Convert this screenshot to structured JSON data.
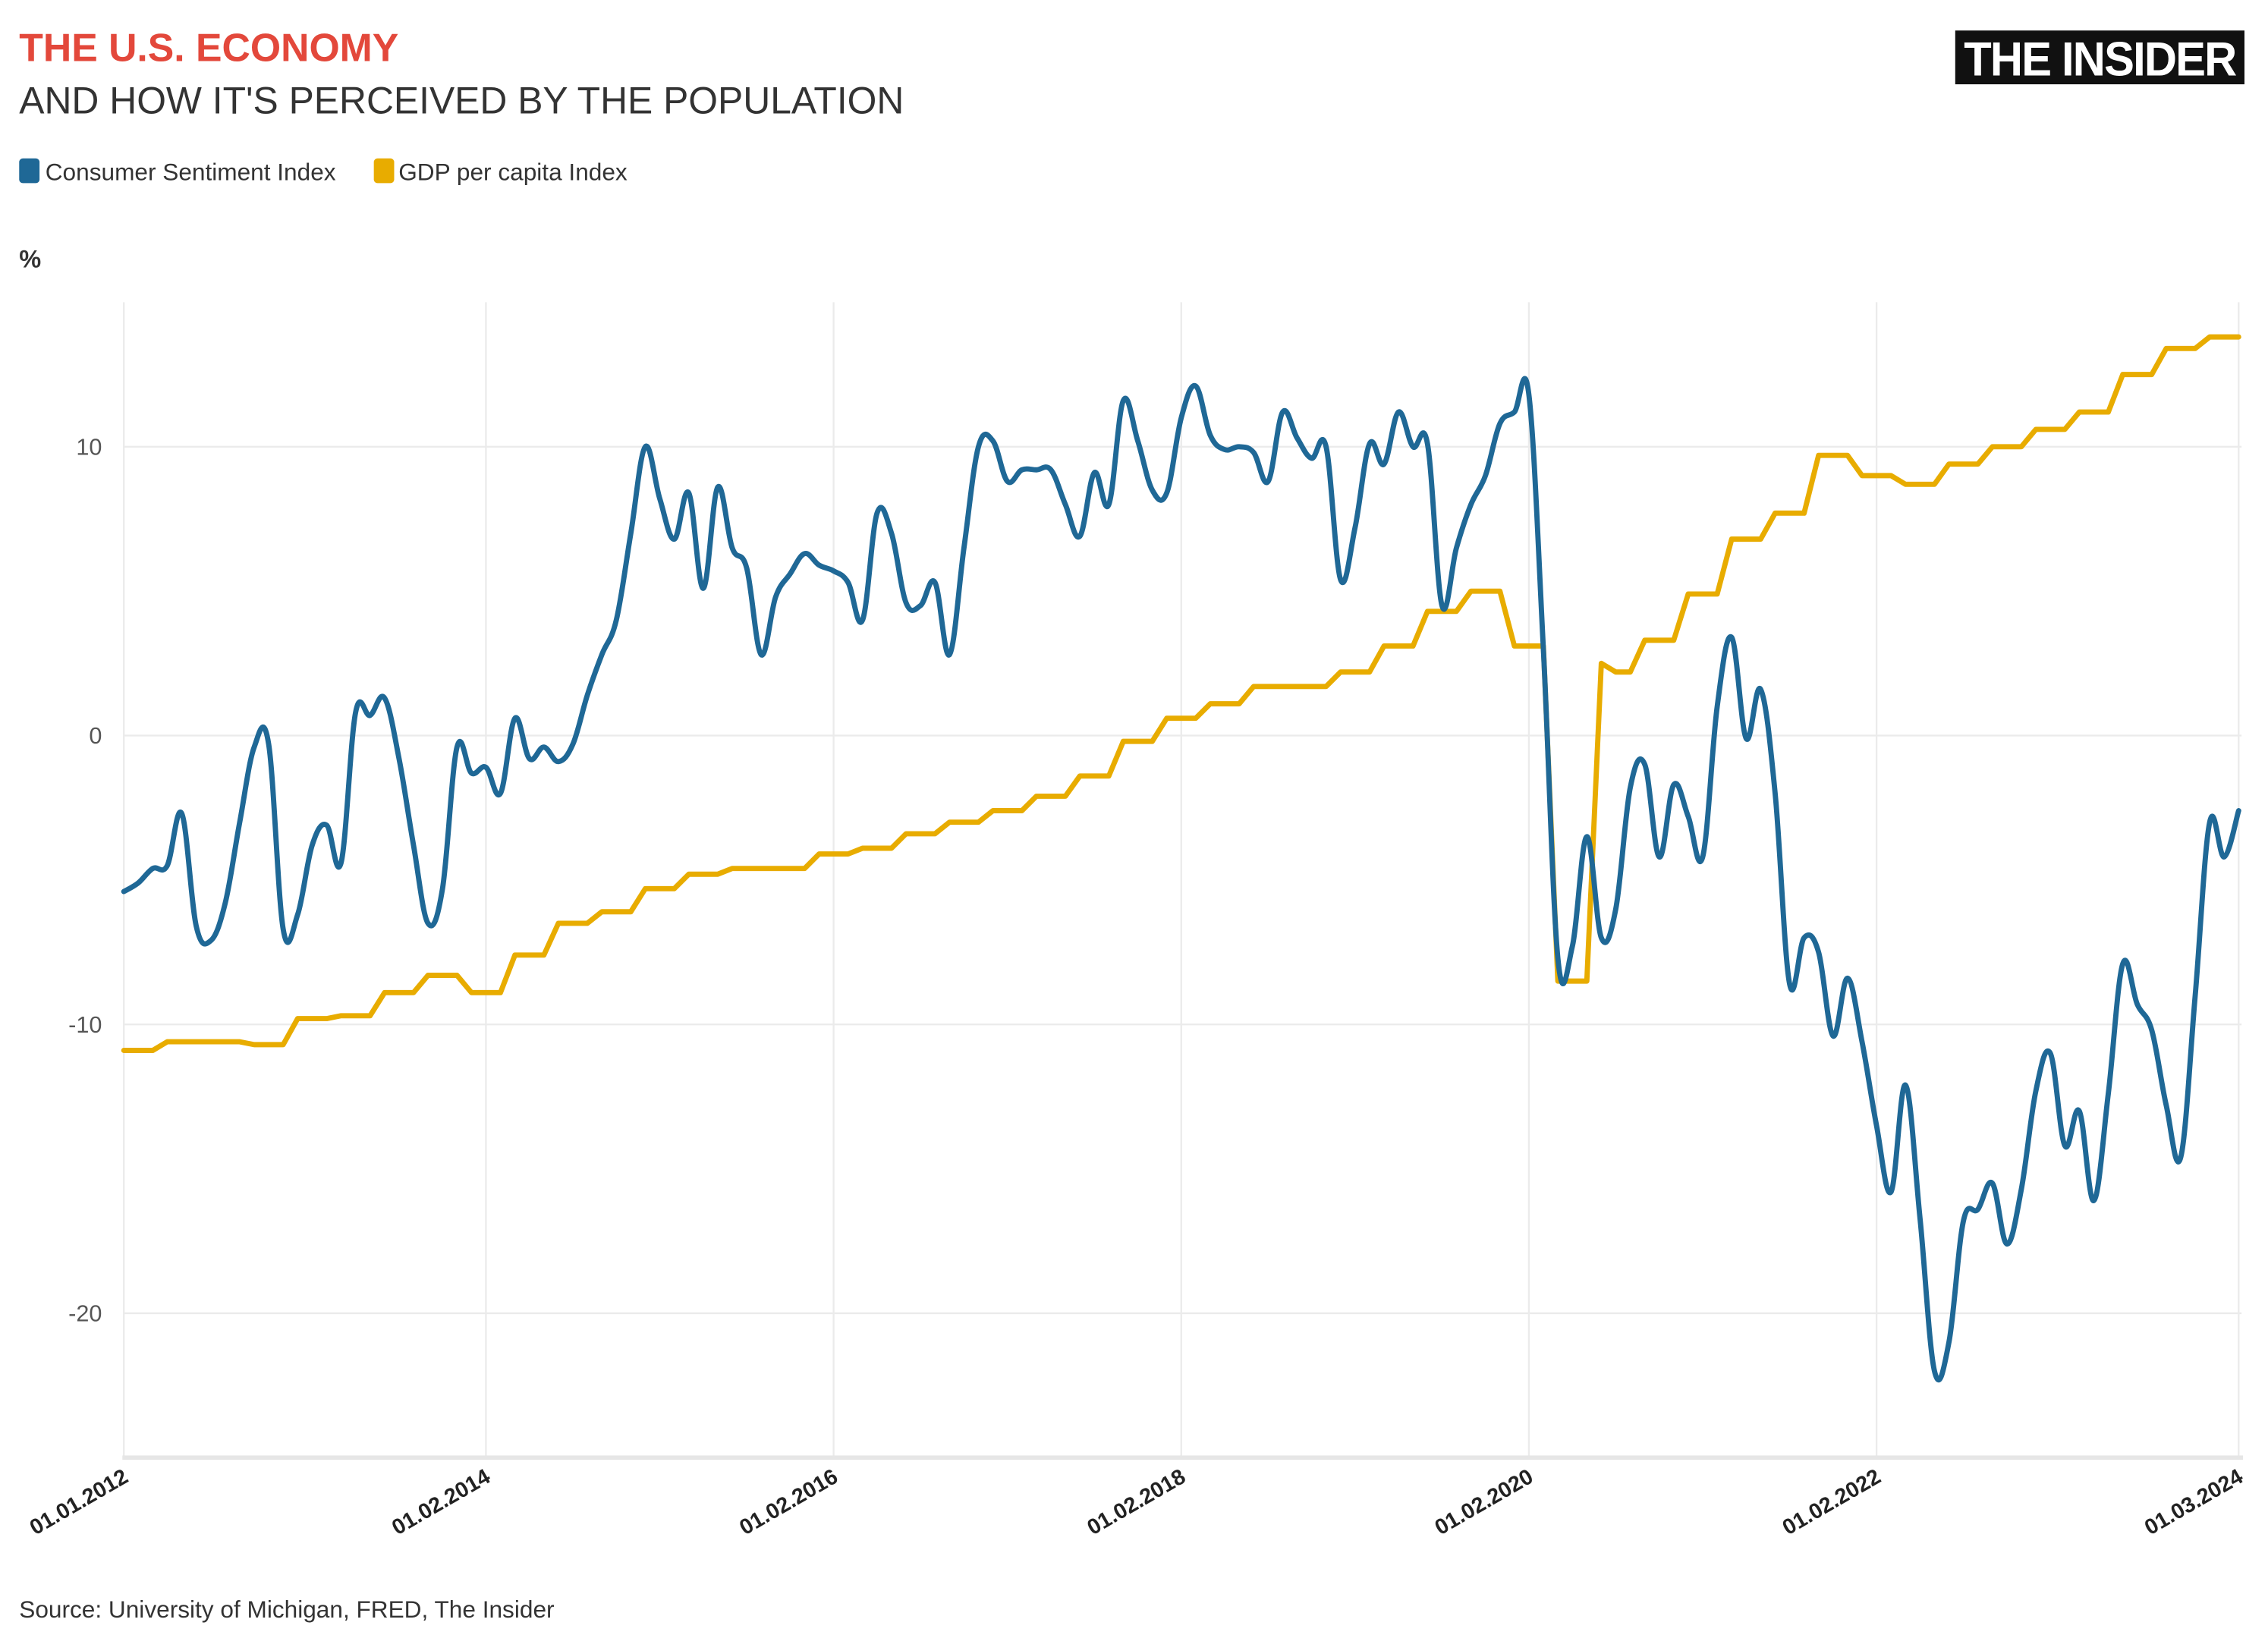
{
  "header": {
    "title": "THE U.S. ECONOMY",
    "subtitle": "AND HOW IT'S PERCEIVED BY THE POPULATION",
    "logo": "THE INSIDER"
  },
  "footer": {
    "source": "Source: University of Michigan, FRED, The Insider"
  },
  "colors": {
    "title": "#e3483b",
    "sentiment": "#1f6896",
    "gdp": "#e8ac00",
    "logo_bg": "#111111"
  },
  "chart_data": {
    "type": "line",
    "title": "THE U.S. ECONOMY",
    "subtitle": "AND HOW IT'S PERCEIVED BY THE POPULATION",
    "xlabel": "",
    "ylabel": "%",
    "x_start": "2012-01",
    "x_frequency": "monthly",
    "x_ticks": [
      "01.01.2012",
      "01.02.2014",
      "01.02.2016",
      "01.02.2018",
      "01.02.2020",
      "01.02.2022",
      "01.03.2024"
    ],
    "y_ticks": [
      10,
      0,
      -10,
      -20
    ],
    "ylim": [
      -25,
      15
    ],
    "grid": true,
    "legend_position": "top-left",
    "series": [
      {
        "name": "Consumer Sentiment Index",
        "color": "#1f6896",
        "values": [
          -5.4,
          -5.1,
          -4.6,
          -4.5,
          -2.7,
          -6.6,
          -7.1,
          -5.8,
          -3.0,
          -0.4,
          -0.3,
          -6.7,
          -6.2,
          -3.8,
          -3.1,
          -4.4,
          0.8,
          0.7,
          1.3,
          -0.8,
          -3.8,
          -6.5,
          -5.3,
          -0.4,
          -1.3,
          -1.1,
          -2.0,
          0.6,
          -0.8,
          -0.4,
          -0.9,
          -0.3,
          1.4,
          2.8,
          4.0,
          7.0,
          10.0,
          8.2,
          6.8,
          8.4,
          5.1,
          8.6,
          6.5,
          5.8,
          2.8,
          4.8,
          5.6,
          6.3,
          5.9,
          5.7,
          5.3,
          4.0,
          7.7,
          7.0,
          4.6,
          4.5,
          5.3,
          2.8,
          6.5,
          10.0,
          10.2,
          8.8,
          9.2,
          9.2,
          9.2,
          8.0,
          6.9,
          9.1,
          8.0,
          11.6,
          10.2,
          8.5,
          8.4,
          11.0,
          12.1,
          10.4,
          9.9,
          10.0,
          9.8,
          8.8,
          11.2,
          10.3,
          9.6,
          10.0,
          5.4,
          7.2,
          10.1,
          9.4,
          11.2,
          10.0,
          10.1,
          4.5,
          6.5,
          8.0,
          9.0,
          10.8,
          11.2,
          11.8,
          3.0,
          -7.7,
          -7.3,
          -3.5,
          -7.0,
          -6.0,
          -1.8,
          -1.0,
          -4.2,
          -1.7,
          -2.8,
          -4.2,
          1.0,
          3.4,
          -0.1,
          1.6,
          -2.0,
          -8.6,
          -7.0,
          -7.5,
          -10.4,
          -8.4,
          -10.6,
          -13.5,
          -15.8,
          -12.1,
          -16.7,
          -22.0,
          -21.0,
          -16.8,
          -16.4,
          -15.5,
          -17.6,
          -15.7,
          -12.3,
          -11.0,
          -14.2,
          -13.0,
          -16.1,
          -12.4,
          -7.9,
          -9.3,
          -10.2,
          -12.8,
          -14.6,
          -9.0,
          -3.0,
          -4.2,
          -2.6
        ]
      },
      {
        "name": "GDP per capita Index",
        "color": "#e8ac00",
        "values": [
          -10.9,
          -10.9,
          -10.9,
          -10.6,
          -10.6,
          -10.6,
          -10.6,
          -10.6,
          -10.6,
          -10.7,
          -10.7,
          -10.7,
          -9.8,
          -9.8,
          -9.8,
          -9.7,
          -9.7,
          -9.7,
          -8.9,
          -8.9,
          -8.9,
          -8.3,
          -8.3,
          -8.3,
          -8.9,
          -8.9,
          -8.9,
          -7.6,
          -7.6,
          -7.6,
          -6.5,
          -6.5,
          -6.5,
          -6.1,
          -6.1,
          -6.1,
          -5.3,
          -5.3,
          -5.3,
          -4.8,
          -4.8,
          -4.8,
          -4.6,
          -4.6,
          -4.6,
          -4.6,
          -4.6,
          -4.6,
          -4.1,
          -4.1,
          -4.1,
          -3.9,
          -3.9,
          -3.9,
          -3.4,
          -3.4,
          -3.4,
          -3.0,
          -3.0,
          -3.0,
          -2.6,
          -2.6,
          -2.6,
          -2.1,
          -2.1,
          -2.1,
          -1.4,
          -1.4,
          -1.4,
          -0.2,
          -0.2,
          -0.2,
          0.6,
          0.6,
          0.6,
          1.1,
          1.1,
          1.1,
          1.7,
          1.7,
          1.7,
          1.7,
          1.7,
          1.7,
          2.2,
          2.2,
          2.2,
          3.1,
          3.1,
          3.1,
          4.3,
          4.3,
          4.3,
          5.0,
          5.0,
          5.0,
          3.1,
          3.1,
          3.1,
          -8.5,
          -8.5,
          -8.5,
          2.5,
          2.2,
          2.2,
          3.3,
          3.3,
          3.3,
          4.9,
          4.9,
          4.9,
          6.8,
          6.8,
          6.8,
          7.7,
          7.7,
          7.7,
          9.7,
          9.7,
          9.7,
          9.0,
          9.0,
          9.0,
          8.7,
          8.7,
          8.7,
          9.4,
          9.4,
          9.4,
          10.0,
          10.0,
          10.0,
          10.6,
          10.6,
          10.6,
          11.2,
          11.2,
          11.2,
          12.5,
          12.5,
          12.5,
          13.4,
          13.4,
          13.4,
          13.8,
          13.8,
          13.8
        ]
      }
    ]
  }
}
